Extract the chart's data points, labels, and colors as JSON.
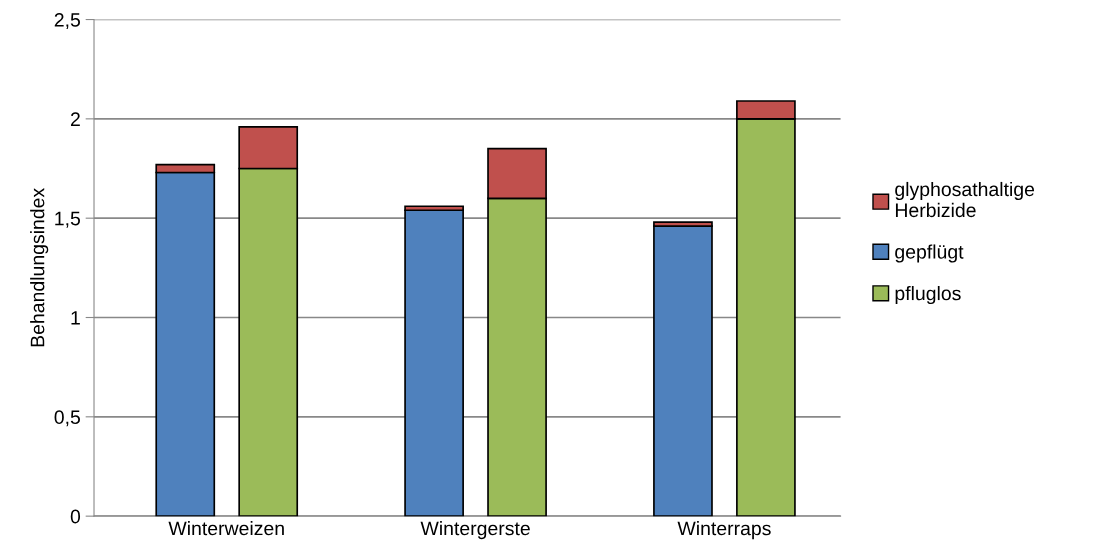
{
  "chart_data": {
    "type": "bar",
    "ylabel": "Behandlungsindex",
    "categories": [
      "Winterweizen",
      null,
      null,
      "Wintergerste",
      null,
      null,
      "Winterraps",
      null
    ],
    "series": [
      {
        "name": "gepflügt",
        "color": "#4f81bd",
        "values": [
          1.73,
          null,
          null,
          1.54,
          null,
          null,
          1.46,
          null
        ]
      },
      {
        "name": "pfluglos",
        "color": "#9bbb59",
        "values": [
          null,
          1.75,
          null,
          null,
          1.6,
          null,
          null,
          2.0
        ]
      },
      {
        "name": "glyphosathaltige Herbizide",
        "color": "#c0504d",
        "values": [
          0.04,
          0.21,
          null,
          0.02,
          0.25,
          null,
          0.02,
          0.09
        ]
      }
    ],
    "stacked": true,
    "ylim": [
      0,
      2.5
    ],
    "yticks": [
      0,
      {
        "value": 0.5,
        "label": "0,5"
      },
      1,
      {
        "value": 1.5,
        "label": "1,5"
      },
      2,
      {
        "value": 2.5,
        "label": "2,5"
      }
    ],
    "grid": "y",
    "legend": "right"
  }
}
